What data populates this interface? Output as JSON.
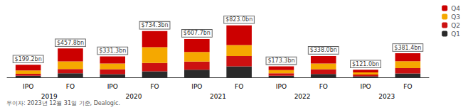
{
  "chart_data": {
    "type": "bar",
    "stacked": true,
    "categories": [
      "IPO",
      "FO",
      "IPO",
      "FO",
      "IPO",
      "FO",
      "IPO",
      "FO",
      "IPO",
      "FO"
    ],
    "year_labels": [
      "2019",
      "2020",
      "2021",
      "2022",
      "2023"
    ],
    "series": [
      {
        "name": "Q1",
        "color": "#2a2a2a",
        "values": [
          25.896,
          64.092,
          49.695,
          95.459,
          121.54,
          172.83,
          24.262,
          54.08,
          18.15,
          61.024
        ]
      },
      {
        "name": "Q2",
        "color": "#cc1111",
        "values": [
          29.88,
          68.67,
          79.512,
          132.174,
          127.617,
          164.6,
          39.859,
          74.36,
          25.41,
          83.908
        ]
      },
      {
        "name": "Q3",
        "color": "#f5a800",
        "values": [
          53.784,
          119.028,
          89.451,
          249.662,
          151.925,
          172.83,
          50.257,
          91.26,
          35.09,
          110.606
        ]
      },
      {
        "name": "Q4",
        "color": "#cc0000",
        "values": [
          89.64,
          206.01,
          112.642,
          257.005,
          206.618,
          312.74,
          58.922,
          118.3,
          42.35,
          125.862
        ]
      }
    ],
    "totals": [
      199.2,
      457.8,
      331.3,
      734.3,
      607.7,
      823.0,
      173.3,
      338.0,
      121.0,
      381.4
    ],
    "total_labels": [
      "$199.2bn",
      "$457.8bn",
      "$331.3bn",
      "$734.3bn",
      "$607.7bn",
      "$823.0bn",
      "$173.3bn",
      "$338.0bn",
      "$121.0bn",
      "$381.4bn"
    ],
    "footer": "우이자: 2023년 12월 31일 기준, Dealogic.",
    "legend": "upper right",
    "ylim": [
      0,
      1000
    ],
    "tick_labels": "x",
    "grid": false
  }
}
